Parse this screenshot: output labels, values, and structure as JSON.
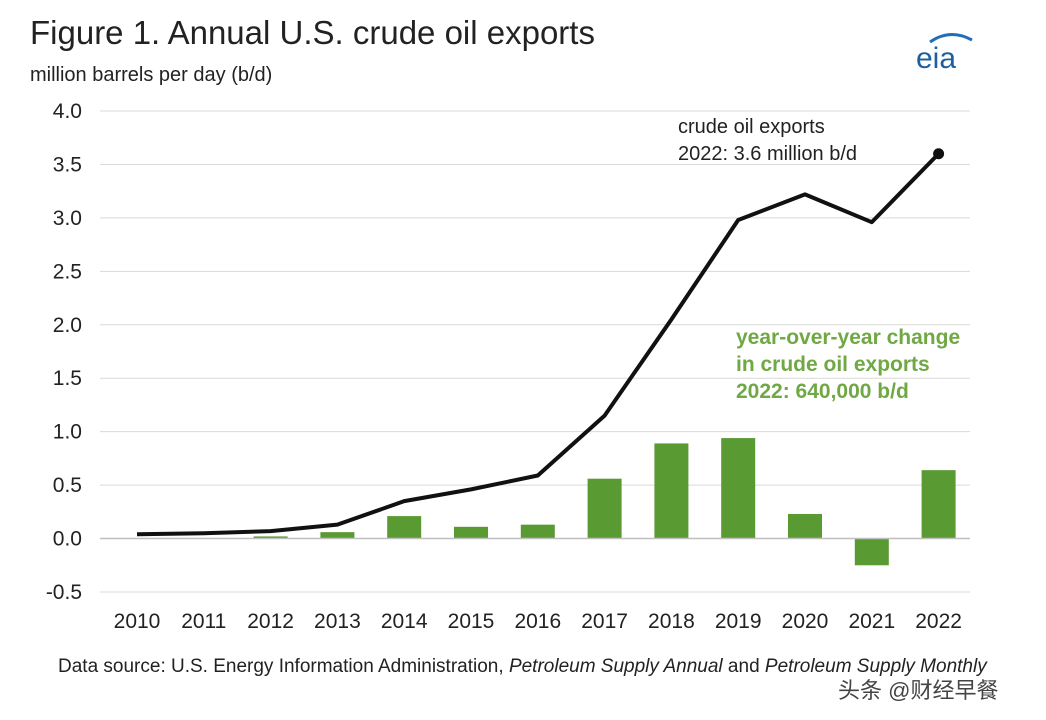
{
  "title": "Figure 1. Annual U.S. crude oil exports",
  "unit_label": "million barrels per day (b/d)",
  "logo_text": "eia",
  "source": {
    "prefix": "Data source: U.S. Energy Information Administration, ",
    "pub1": "Petroleum Supply Annual",
    "joiner": " and ",
    "pub2": "Petroleum Supply Monthly"
  },
  "watermark": "头条 @财经早餐",
  "colors": {
    "line": "#111111",
    "bars": "#5a9a32",
    "green_text": "#70a844",
    "grid": "#d9d9d9"
  },
  "chart_data": {
    "type": "bar+line",
    "title": "Figure 1. Annual U.S. crude oil exports",
    "ylabel": "million barrels per day (b/d)",
    "ylim": [
      -0.5,
      4.0
    ],
    "yticks": [
      4.0,
      3.5,
      3.0,
      2.5,
      2.0,
      1.5,
      1.0,
      0.5,
      0.0,
      -0.5
    ],
    "ytick_labels": [
      "4.0",
      "3.5",
      "3.0",
      "2.5",
      "2.0",
      "1.5",
      "1.0",
      "0.5",
      "0.0",
      "-0.5"
    ],
    "grid": true,
    "categories": [
      "2010",
      "2011",
      "2012",
      "2013",
      "2014",
      "2015",
      "2016",
      "2017",
      "2018",
      "2019",
      "2020",
      "2021",
      "2022"
    ],
    "series": [
      {
        "name": "crude oil exports",
        "type": "line",
        "values": [
          0.04,
          0.05,
          0.07,
          0.13,
          0.35,
          0.46,
          0.59,
          1.15,
          2.05,
          2.98,
          3.22,
          2.96,
          3.6
        ]
      },
      {
        "name": "year-over-year change in crude oil exports",
        "type": "bar",
        "values": [
          0.0,
          0.0,
          0.02,
          0.06,
          0.21,
          0.11,
          0.13,
          0.56,
          0.89,
          0.94,
          0.23,
          -0.25,
          0.64
        ]
      }
    ],
    "annotations": {
      "line": [
        "crude oil exports",
        "2022: 3.6 million b/d"
      ],
      "bars": [
        "year-over-year change",
        "in crude oil exports",
        "2022: 640,000 b/d"
      ]
    }
  }
}
